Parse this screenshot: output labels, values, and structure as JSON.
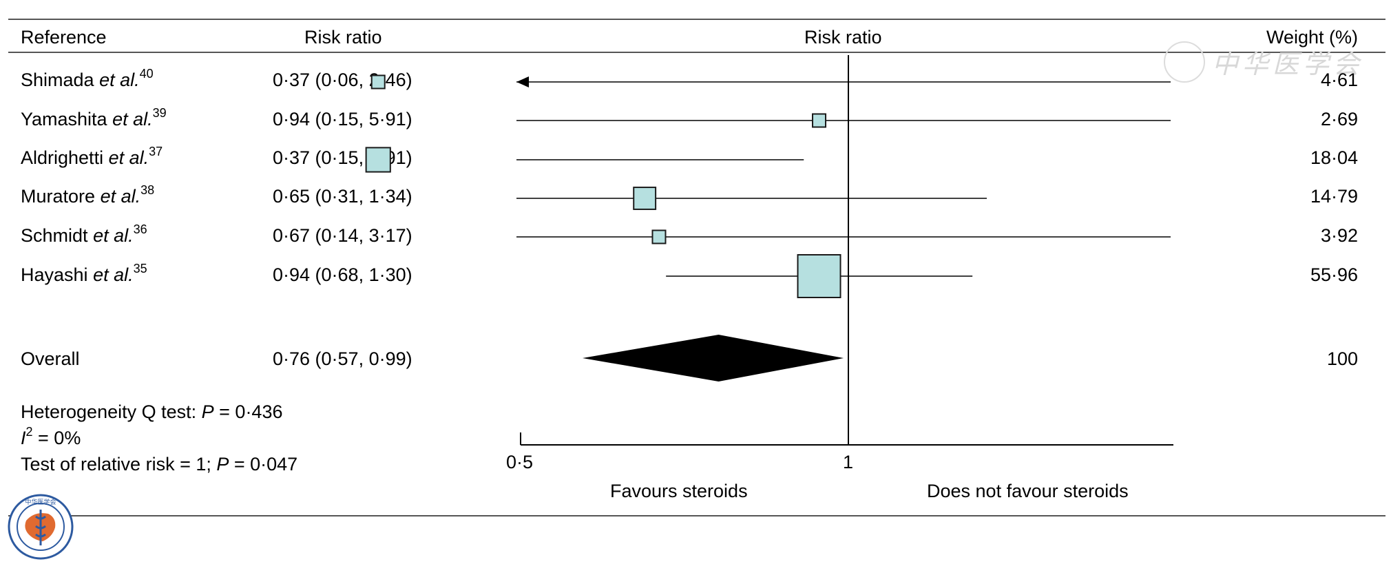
{
  "headers": {
    "reference": "Reference",
    "rr_text": "Risk ratio",
    "rr_plot": "Risk ratio",
    "weight": "Weight (%)"
  },
  "studies": [
    {
      "author": "Shimada",
      "etal": "et al.",
      "ref": "40",
      "text": "0·37 (0·06, 2·46)",
      "weight_text": "4·61",
      "rr": 0.37,
      "lo": 0.06,
      "hi": 2.46,
      "weight": 4.61,
      "arrow_left": true
    },
    {
      "author": "Yamashita",
      "etal": "et al.",
      "ref": "39",
      "text": "0·94 (0·15, 5·91)",
      "weight_text": "2·69",
      "rr": 0.94,
      "lo": 0.15,
      "hi": 5.91,
      "weight": 2.69,
      "arrow_left": false
    },
    {
      "author": "Aldrighetti",
      "etal": "et al.",
      "ref": "37",
      "text": "0·37 (0·15, 0·91)",
      "weight_text": "18·04",
      "rr": 0.37,
      "lo": 0.15,
      "hi": 0.91,
      "weight": 18.04,
      "arrow_left": false
    },
    {
      "author": "Muratore",
      "etal": "et al.",
      "ref": "38",
      "text": "0·65 (0·31, 1·34)",
      "weight_text": "14·79",
      "rr": 0.65,
      "lo": 0.31,
      "hi": 1.34,
      "weight": 14.79,
      "arrow_left": false
    },
    {
      "author": "Schmidt",
      "etal": "et al.",
      "ref": "36",
      "text": "0·67 (0·14, 3·17)",
      "weight_text": "3·92",
      "rr": 0.67,
      "lo": 0.14,
      "hi": 3.17,
      "weight": 3.92,
      "arrow_left": false
    },
    {
      "author": "Hayashi",
      "etal": "et al.",
      "ref": "35",
      "text": "0·94 (0·68, 1·30)",
      "weight_text": "55·96",
      "rr": 0.94,
      "lo": 0.68,
      "hi": 1.3,
      "weight": 55.96,
      "arrow_left": false
    }
  ],
  "overall": {
    "label": "Overall",
    "text": "0·76 (0·57, 0·99)",
    "weight_text": "100",
    "rr": 0.76,
    "lo": 0.57,
    "hi": 0.99
  },
  "stats": {
    "heterogeneity_prefix": "Heterogeneity Q test: ",
    "heterogeneity_p": "P",
    "heterogeneity_value": " = 0·436",
    "i2_symbol": "I",
    "i2_sup": "2",
    "i2_value": " = 0%",
    "rr_test_prefix": "Test of relative risk = 1; ",
    "rr_test_p": "P",
    "rr_test_value": " = 0·047"
  },
  "axis": {
    "tick_left": "0·5",
    "tick_right": "1",
    "favours_left": "Favours steroids",
    "favours_right": "Does not favour steroids"
  },
  "colors": {
    "box_fill": "#b6e0e0",
    "box_stroke": "#1a1a1a",
    "diamond": "#000000",
    "line": "#000000"
  },
  "watermark": {
    "text": "中华医学会"
  },
  "logo": {
    "icon": "chinese-medical-association-seal-icon",
    "text": "中华医学会"
  },
  "chart_data": {
    "type": "forest",
    "categories": [
      "Shimada et al.",
      "Yamashita et al.",
      "Aldrighetti et al.",
      "Muratore et al.",
      "Schmidt et al.",
      "Hayashi et al."
    ],
    "values": [
      0.37,
      0.94,
      0.37,
      0.65,
      0.67,
      0.94
    ],
    "ci_lower": [
      0.06,
      0.15,
      0.15,
      0.31,
      0.14,
      0.68
    ],
    "ci_upper": [
      2.46,
      5.91,
      0.91,
      1.34,
      3.17,
      1.3
    ],
    "weights": [
      4.61,
      2.69,
      18.04,
      14.79,
      3.92,
      55.96
    ],
    "overall": {
      "value": 0.76,
      "ci_lower": 0.57,
      "ci_upper": 0.99
    },
    "xlabel": "Risk ratio",
    "xticks": [
      "0·5",
      "1"
    ],
    "x_scale": "log",
    "xlim": [
      0.5,
      2
    ]
  }
}
